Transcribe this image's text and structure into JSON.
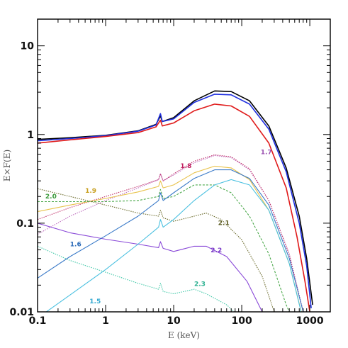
{
  "chart_data": {
    "type": "line",
    "title": "",
    "xlabel": "E (keV)",
    "ylabel": "E×F(E)",
    "xscale": "log",
    "yscale": "log",
    "xlim": [
      0.1,
      2000
    ],
    "ylim": [
      0.01,
      20
    ],
    "grid": false,
    "x_ticks": [
      {
        "value": 0.1,
        "label": "0.1"
      },
      {
        "value": 1,
        "label": "1"
      },
      {
        "value": 10,
        "label": "10"
      },
      {
        "value": 100,
        "label": "100"
      },
      {
        "value": 1000,
        "label": "1000"
      }
    ],
    "y_ticks": [
      {
        "value": 0.01,
        "label": "0.01"
      },
      {
        "value": 0.1,
        "label": "0.1"
      },
      {
        "value": 1,
        "label": "1"
      },
      {
        "value": 10,
        "label": "10"
      }
    ],
    "series": [
      {
        "color": "#000000",
        "style": "solid",
        "width": 1.6,
        "points": [
          [
            0.1,
            0.88
          ],
          [
            0.3,
            0.92
          ],
          [
            1,
            0.98
          ],
          [
            3,
            1.1
          ],
          [
            5.5,
            1.3
          ],
          [
            6.4,
            1.62
          ],
          [
            6.8,
            1.4
          ],
          [
            10,
            1.55
          ],
          [
            20,
            2.4
          ],
          [
            40,
            3.1
          ],
          [
            70,
            3.05
          ],
          [
            130,
            2.4
          ],
          [
            250,
            1.25
          ],
          [
            450,
            0.42
          ],
          [
            700,
            0.12
          ],
          [
            900,
            0.04
          ],
          [
            1100,
            0.012
          ]
        ]
      },
      {
        "color": "#1f2fe0",
        "style": "solid",
        "width": 1.6,
        "points": [
          [
            0.1,
            0.85
          ],
          [
            0.3,
            0.9
          ],
          [
            1,
            0.97
          ],
          [
            3,
            1.09
          ],
          [
            5.5,
            1.28
          ],
          [
            6.4,
            1.72
          ],
          [
            6.8,
            1.4
          ],
          [
            10,
            1.5
          ],
          [
            20,
            2.3
          ],
          [
            40,
            2.85
          ],
          [
            70,
            2.8
          ],
          [
            130,
            2.2
          ],
          [
            250,
            1.15
          ],
          [
            450,
            0.38
          ],
          [
            700,
            0.1
          ],
          [
            900,
            0.033
          ],
          [
            1050,
            0.011
          ]
        ]
      },
      {
        "color": "#e01a1a",
        "style": "solid",
        "width": 1.6,
        "points": [
          [
            0.1,
            0.8
          ],
          [
            0.3,
            0.87
          ],
          [
            1,
            0.95
          ],
          [
            3,
            1.05
          ],
          [
            5.5,
            1.22
          ],
          [
            6.4,
            1.45
          ],
          [
            6.8,
            1.25
          ],
          [
            10,
            1.35
          ],
          [
            20,
            1.85
          ],
          [
            40,
            2.2
          ],
          [
            70,
            2.1
          ],
          [
            130,
            1.6
          ],
          [
            250,
            0.8
          ],
          [
            450,
            0.25
          ],
          [
            650,
            0.07
          ],
          [
            850,
            0.022
          ],
          [
            1000,
            0.01
          ]
        ]
      },
      {
        "label": "1.7",
        "color": "#c070c0",
        "style": "dotted",
        "width": 1.1,
        "points": [
          [
            0.1,
            0.075
          ],
          [
            0.3,
            0.12
          ],
          [
            1,
            0.18
          ],
          [
            3,
            0.25
          ],
          [
            6,
            0.31
          ],
          [
            6.4,
            0.36
          ],
          [
            7,
            0.3
          ],
          [
            10,
            0.35
          ],
          [
            20,
            0.48
          ],
          [
            40,
            0.58
          ],
          [
            70,
            0.55
          ],
          [
            130,
            0.4
          ],
          [
            250,
            0.18
          ],
          [
            500,
            0.045
          ],
          [
            800,
            0.01
          ]
        ]
      },
      {
        "label": "1.8",
        "color": "#c0306a",
        "style": "dotted",
        "width": 1.1,
        "points": [
          [
            0.1,
            0.11
          ],
          [
            0.3,
            0.15
          ],
          [
            1,
            0.2
          ],
          [
            3,
            0.26
          ],
          [
            6,
            0.31
          ],
          [
            6.4,
            0.36
          ],
          [
            7,
            0.3
          ],
          [
            10,
            0.36
          ],
          [
            20,
            0.5
          ],
          [
            40,
            0.59
          ],
          [
            70,
            0.56
          ],
          [
            130,
            0.41
          ],
          [
            250,
            0.18
          ],
          [
            500,
            0.044
          ],
          [
            800,
            0.01
          ]
        ]
      },
      {
        "label": "1.9",
        "color": "#e8c24a",
        "style": "solid",
        "width": 1.1,
        "points": [
          [
            0.1,
            0.135
          ],
          [
            0.3,
            0.16
          ],
          [
            1,
            0.19
          ],
          [
            3,
            0.225
          ],
          [
            6,
            0.26
          ],
          [
            6.4,
            0.3
          ],
          [
            7,
            0.25
          ],
          [
            10,
            0.27
          ],
          [
            20,
            0.37
          ],
          [
            40,
            0.44
          ],
          [
            70,
            0.42
          ],
          [
            130,
            0.31
          ],
          [
            250,
            0.14
          ],
          [
            500,
            0.035
          ],
          [
            750,
            0.01
          ]
        ]
      },
      {
        "label": "2.0",
        "color": "#4aa84a",
        "style": "dashed",
        "width": 1.1,
        "points": [
          [
            0.1,
            0.175
          ],
          [
            0.3,
            0.175
          ],
          [
            1,
            0.175
          ],
          [
            3,
            0.18
          ],
          [
            6,
            0.2
          ],
          [
            6.4,
            0.24
          ],
          [
            7,
            0.19
          ],
          [
            10,
            0.2
          ],
          [
            20,
            0.27
          ],
          [
            40,
            0.27
          ],
          [
            70,
            0.22
          ],
          [
            130,
            0.12
          ],
          [
            250,
            0.045
          ],
          [
            450,
            0.012
          ],
          [
            500,
            0.01
          ]
        ]
      },
      {
        "label": "2.1",
        "color": "#6a6a2a",
        "style": "dotted",
        "width": 1.1,
        "points": [
          [
            0.1,
            0.245
          ],
          [
            0.3,
            0.2
          ],
          [
            1,
            0.16
          ],
          [
            3,
            0.13
          ],
          [
            6,
            0.12
          ],
          [
            6.4,
            0.14
          ],
          [
            7,
            0.115
          ],
          [
            10,
            0.105
          ],
          [
            20,
            0.12
          ],
          [
            30,
            0.13
          ],
          [
            50,
            0.11
          ],
          [
            100,
            0.065
          ],
          [
            200,
            0.025
          ],
          [
            300,
            0.01
          ]
        ]
      },
      {
        "label": "2.2",
        "color": "#8a4ad8",
        "style": "solid",
        "width": 1.1,
        "points": [
          [
            0.1,
            0.1
          ],
          [
            0.3,
            0.078
          ],
          [
            1,
            0.066
          ],
          [
            3,
            0.058
          ],
          [
            6,
            0.053
          ],
          [
            6.4,
            0.062
          ],
          [
            7,
            0.052
          ],
          [
            10,
            0.048
          ],
          [
            20,
            0.055
          ],
          [
            30,
            0.055
          ],
          [
            60,
            0.042
          ],
          [
            120,
            0.022
          ],
          [
            200,
            0.01
          ]
        ]
      },
      {
        "label": "1.6",
        "color": "#3a7ac8",
        "style": "solid",
        "width": 1.1,
        "points": [
          [
            0.1,
            0.024
          ],
          [
            0.3,
            0.042
          ],
          [
            1,
            0.072
          ],
          [
            3,
            0.12
          ],
          [
            6,
            0.18
          ],
          [
            6.4,
            0.22
          ],
          [
            7,
            0.18
          ],
          [
            10,
            0.22
          ],
          [
            20,
            0.32
          ],
          [
            40,
            0.4
          ],
          [
            70,
            0.4
          ],
          [
            130,
            0.32
          ],
          [
            250,
            0.16
          ],
          [
            500,
            0.04
          ],
          [
            800,
            0.01
          ]
        ]
      },
      {
        "label": "1.5",
        "color": "#4ac0e0",
        "style": "solid",
        "width": 1.1,
        "points": [
          [
            0.1,
            0.0085
          ],
          [
            0.3,
            0.0155
          ],
          [
            1,
            0.03
          ],
          [
            3,
            0.058
          ],
          [
            6,
            0.09
          ],
          [
            6.4,
            0.11
          ],
          [
            7,
            0.09
          ],
          [
            10,
            0.11
          ],
          [
            20,
            0.18
          ],
          [
            40,
            0.27
          ],
          [
            70,
            0.31
          ],
          [
            130,
            0.27
          ],
          [
            250,
            0.14
          ],
          [
            500,
            0.035
          ],
          [
            800,
            0.008
          ]
        ]
      },
      {
        "label": "2.3",
        "color": "#40c8a8",
        "style": "dotted",
        "width": 1.1,
        "points": [
          [
            0.1,
            0.055
          ],
          [
            0.3,
            0.038
          ],
          [
            1,
            0.028
          ],
          [
            3,
            0.021
          ],
          [
            6,
            0.018
          ],
          [
            6.4,
            0.021
          ],
          [
            7,
            0.017
          ],
          [
            10,
            0.016
          ],
          [
            20,
            0.018
          ],
          [
            30,
            0.016
          ],
          [
            60,
            0.012
          ],
          [
            90,
            0.009
          ]
        ]
      }
    ],
    "labels": [
      {
        "text": "1.7",
        "color": "#9a50b0",
        "at": [
          190,
          0.6
        ]
      },
      {
        "text": "1.8",
        "color": "#c02060",
        "at": [
          12.5,
          0.42
        ]
      },
      {
        "text": "1.9",
        "color": "#c8a020",
        "at": [
          0.5,
          0.22
        ]
      },
      {
        "text": "2.0",
        "color": "#3a9a3a",
        "at": [
          0.13,
          0.19
        ]
      },
      {
        "text": "2.1",
        "color": "#5a5a20",
        "at": [
          45,
          0.095
        ]
      },
      {
        "text": "2.2",
        "color": "#7a3ac8",
        "at": [
          35,
          0.047
        ]
      },
      {
        "text": "1.6",
        "color": "#2a6ab8",
        "at": [
          0.3,
          0.055
        ]
      },
      {
        "text": "1.5",
        "color": "#30a8d0",
        "at": [
          0.58,
          0.0125
        ]
      },
      {
        "text": "2.3",
        "color": "#2ab090",
        "at": [
          20,
          0.0195
        ]
      }
    ]
  }
}
